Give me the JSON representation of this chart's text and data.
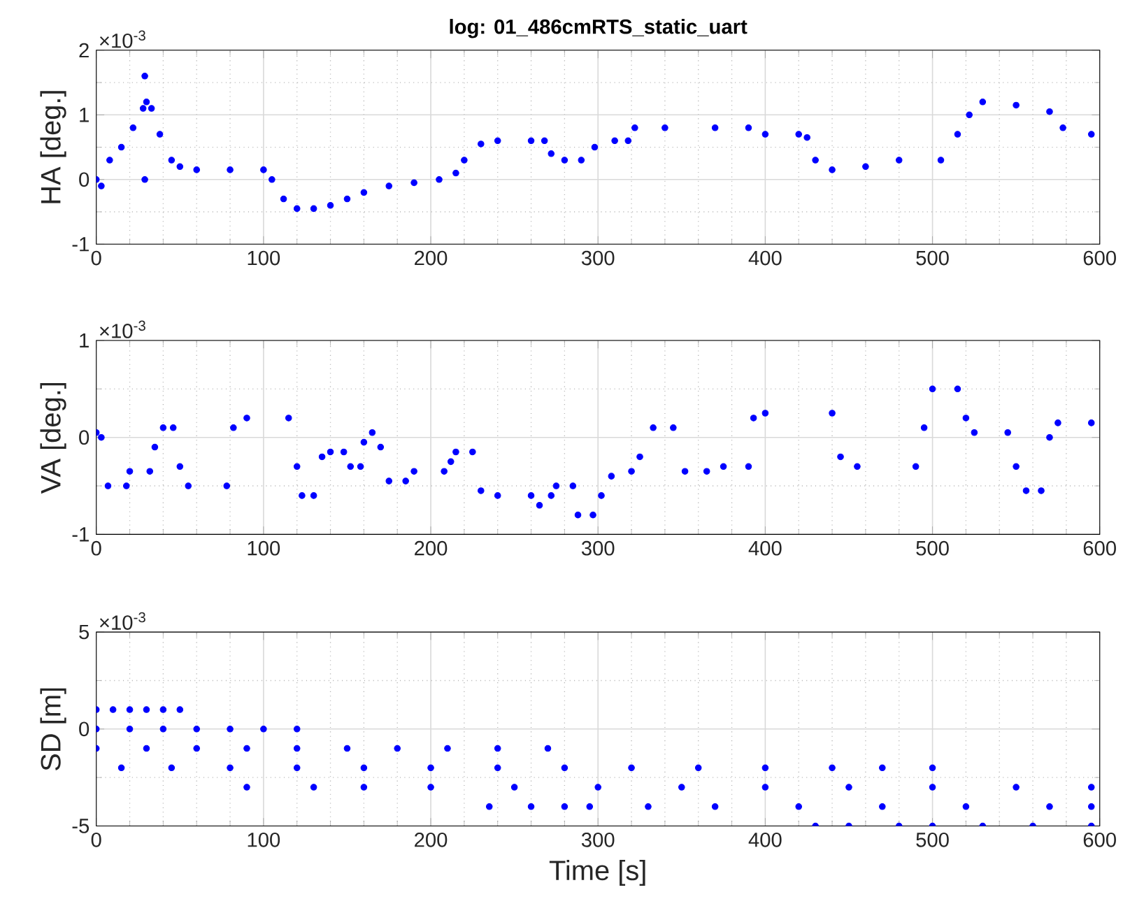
{
  "chart_data": [
    {
      "type": "scatter",
      "title": "**log: 01_486cmRTS_static_uart**",
      "ylabel": "HA [deg.]",
      "annotations": [
        "×10$^{-3}$"
      ],
      "marker": "circle",
      "grid": true,
      "xlim": [
        0,
        600
      ],
      "xticks": [
        0,
        100,
        200,
        300,
        400,
        500,
        600
      ],
      "ylim": [
        -1,
        2
      ],
      "yticks": [
        -1,
        0,
        1,
        2
      ],
      "series": [
        {
          "color": "#0000ff",
          "x": [
            0,
            3,
            8,
            15,
            22,
            28,
            30,
            33,
            38,
            45,
            50,
            60,
            80,
            100,
            105,
            112,
            120,
            130,
            140,
            150,
            160,
            175,
            190,
            205,
            215,
            220,
            230,
            240,
            260,
            268,
            272,
            280,
            290,
            298,
            310,
            318,
            322,
            340,
            370,
            390,
            400,
            420,
            425,
            430,
            440,
            460,
            480,
            505,
            515,
            522,
            530,
            550,
            570,
            578,
            595,
            29,
            29
          ],
          "values": [
            0,
            -0.1,
            0.3,
            0.5,
            0.8,
            1.1,
            1.2,
            1.1,
            0.7,
            0.3,
            0.2,
            0.15,
            0.15,
            0.15,
            0,
            -0.3,
            -0.45,
            -0.45,
            -0.4,
            -0.3,
            -0.2,
            -0.1,
            -0.05,
            0,
            0.1,
            0.3,
            0.55,
            0.6,
            0.6,
            0.6,
            0.4,
            0.3,
            0.3,
            0.5,
            0.6,
            0.6,
            0.8,
            0.8,
            0.8,
            0.8,
            0.7,
            0.7,
            0.65,
            0.3,
            0.15,
            0.2,
            0.3,
            0.3,
            0.7,
            1.0,
            1.2,
            1.15,
            1.05,
            0.8,
            0.7,
            1.6,
            0
          ]
        }
      ]
    },
    {
      "type": "scatter",
      "ylabel": "VA [deg.]",
      "annotations": [
        "×10$^{-3}$"
      ],
      "marker": "circle",
      "grid": true,
      "xlim": [
        0,
        600
      ],
      "xticks": [
        0,
        100,
        200,
        300,
        400,
        500,
        600
      ],
      "ylim": [
        -1,
        1
      ],
      "yticks": [
        -1,
        0,
        1
      ],
      "series": [
        {
          "color": "#0000ff",
          "x": [
            0,
            3,
            7,
            18,
            20,
            32,
            35,
            40,
            46,
            50,
            55,
            78,
            82,
            90,
            115,
            120,
            123,
            130,
            135,
            140,
            148,
            152,
            158,
            160,
            165,
            170,
            175,
            185,
            190,
            208,
            212,
            215,
            225,
            230,
            240,
            260,
            265,
            272,
            275,
            285,
            288,
            297,
            302,
            308,
            320,
            325,
            333,
            345,
            352,
            365,
            375,
            390,
            393,
            400,
            440,
            445,
            455,
            490,
            495,
            500,
            515,
            520,
            525,
            545,
            550,
            556,
            565,
            570,
            575,
            595
          ],
          "values": [
            0.05,
            0,
            -0.5,
            -0.5,
            -0.35,
            -0.35,
            -0.1,
            0.1,
            0.1,
            -0.3,
            -0.5,
            -0.5,
            0.1,
            0.2,
            0.2,
            -0.3,
            -0.6,
            -0.6,
            -0.2,
            -0.15,
            -0.15,
            -0.3,
            -0.3,
            -0.05,
            0.05,
            -0.1,
            -0.45,
            -0.45,
            -0.35,
            -0.35,
            -0.25,
            -0.15,
            -0.15,
            -0.55,
            -0.6,
            -0.6,
            -0.7,
            -0.6,
            -0.5,
            -0.5,
            -0.8,
            -0.8,
            -0.6,
            -0.4,
            -0.35,
            -0.2,
            0.1,
            0.1,
            -0.35,
            -0.35,
            -0.3,
            -0.3,
            0.2,
            0.25,
            0.25,
            -0.2,
            -0.3,
            -0.3,
            0.1,
            0.5,
            0.5,
            0.2,
            0.05,
            0.05,
            -0.3,
            -0.55,
            -0.55,
            0,
            0.15,
            0.15
          ]
        }
      ]
    },
    {
      "type": "scatter",
      "xlabel": "Time [s]",
      "ylabel": "SD [m]",
      "annotations": [
        "×10$^{-3}$"
      ],
      "marker": "circle",
      "grid": true,
      "xlim": [
        0,
        600
      ],
      "xticks": [
        0,
        100,
        200,
        300,
        400,
        500,
        600
      ],
      "ylim": [
        -5,
        5
      ],
      "yticks": [
        -5,
        0,
        5
      ],
      "series": [
        {
          "color": "#0000ff",
          "x": [
            0,
            10,
            20,
            30,
            40,
            50,
            0,
            20,
            40,
            60,
            80,
            100,
            120,
            0,
            30,
            60,
            90,
            120,
            150,
            180,
            210,
            240,
            270,
            15,
            45,
            80,
            120,
            160,
            200,
            240,
            280,
            320,
            360,
            400,
            440,
            470,
            500,
            90,
            130,
            160,
            200,
            250,
            300,
            350,
            400,
            450,
            500,
            550,
            595,
            235,
            260,
            280,
            295,
            330,
            370,
            420,
            470,
            520,
            570,
            595,
            430,
            450,
            480,
            500,
            530,
            560,
            595
          ],
          "values": [
            1,
            1,
            1,
            1,
            1,
            1,
            0,
            0,
            0,
            0,
            0,
            0,
            0,
            -1,
            -1,
            -1,
            -1,
            -1,
            -1,
            -1,
            -1,
            -1,
            -1,
            -2,
            -2,
            -2,
            -2,
            -2,
            -2,
            -2,
            -2,
            -2,
            -2,
            -2,
            -2,
            -2,
            -2,
            -3,
            -3,
            -3,
            -3,
            -3,
            -3,
            -3,
            -3,
            -3,
            -3,
            -3,
            -3,
            -4,
            -4,
            -4,
            -4,
            -4,
            -4,
            -4,
            -4,
            -4,
            -4,
            -4,
            -5,
            -5,
            -5,
            -5,
            -5,
            -5,
            -5
          ]
        }
      ]
    }
  ]
}
